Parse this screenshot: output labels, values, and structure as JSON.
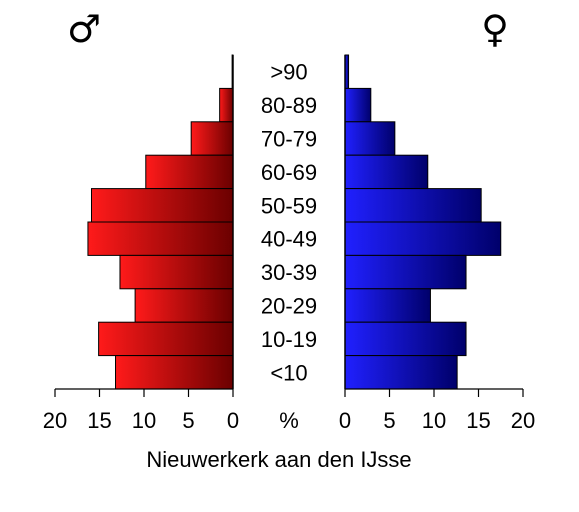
{
  "symbols": {
    "male": "♂",
    "female": "♀"
  },
  "chart_data": {
    "type": "bar",
    "orientation": "horizontal",
    "variant": "population-pyramid",
    "title": "Nieuwerkerk aan den IJsse",
    "axis_unit_label": "%",
    "categories": [
      ">90",
      "80-89",
      "70-79",
      "60-69",
      "50-59",
      "40-49",
      "30-39",
      "20-29",
      "10-19",
      "<10"
    ],
    "xlim": [
      0,
      20
    ],
    "xticks": [
      "0",
      "5",
      "10",
      "15",
      "20"
    ],
    "series": [
      {
        "name": "♂",
        "side": "left",
        "values": [
          0.1,
          1.5,
          4.7,
          9.8,
          15.9,
          16.3,
          12.7,
          11.0,
          15.1,
          13.2
        ]
      },
      {
        "name": "♀",
        "side": "right",
        "values": [
          0.4,
          2.9,
          5.6,
          9.3,
          15.3,
          17.5,
          13.6,
          9.6,
          13.6,
          12.6
        ]
      }
    ],
    "colors": {
      "male_light": "#ff1a1a",
      "male_dark": "#6b0000",
      "female_light": "#2020ff",
      "female_dark": "#00006b"
    },
    "grid": false,
    "legend": "none"
  }
}
